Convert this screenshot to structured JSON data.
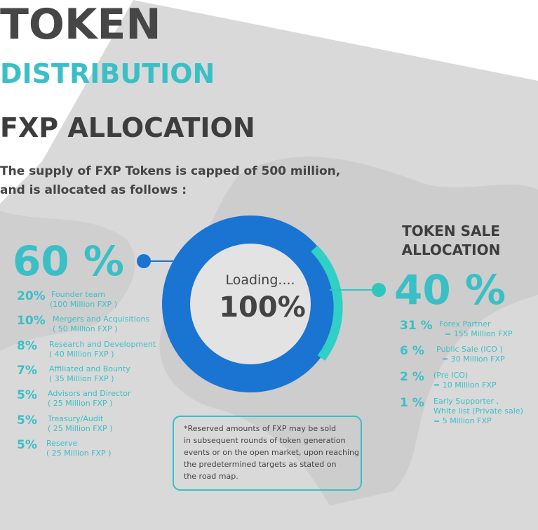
{
  "header": {
    "title": "TOKEN",
    "subtitle": "DISTRIBUTION"
  },
  "section": {
    "heading": "FXP ALLOCATION",
    "intro_lines": [
      "The supply of FXP Tokens is capped of 500 million,",
      "and is allocated as follows :"
    ]
  },
  "center": {
    "status": "Loading....",
    "value": "100%"
  },
  "left": {
    "total": "60 %",
    "items": [
      {
        "percent": "20%",
        "lines": [
          "Founder team",
          "(100 Million FXP )"
        ]
      },
      {
        "percent": "10%",
        "lines": [
          "Mergers  and Acquisitions",
          "( 50 Million FXP )"
        ]
      },
      {
        "percent": "8%",
        "lines": [
          "Research and Development",
          "( 40 Million FXP )"
        ]
      },
      {
        "percent": "7%",
        "lines": [
          "Affiliated and Bounty",
          "( 35 Million FXP )"
        ]
      },
      {
        "percent": "5%",
        "lines": [
          "Advisors and Director",
          "( 25 Million FXP )"
        ]
      },
      {
        "percent": "5%",
        "lines": [
          "Treasury/Audit",
          "( 25 Million FXP )"
        ]
      },
      {
        "percent": "5%",
        "lines": [
          "Reserve",
          "( 25 Million FXP )"
        ]
      }
    ]
  },
  "right": {
    "title_lines": [
      "TOKEN SALE",
      "ALLOCATION"
    ],
    "total": "40 %",
    "items": [
      {
        "percent": "31 %",
        "lines": [
          "Forex Partner",
          "= 155 Million FXP"
        ]
      },
      {
        "percent": "6 %",
        "lines": [
          "Public Sale (ICO )",
          "= 30 Million FXP"
        ]
      },
      {
        "percent": "2 %",
        "lines": [
          "(Pre ICO)",
          "= 10 Million FXP"
        ]
      },
      {
        "percent": "1 %",
        "lines": [
          "Early Supporter ,",
          "White list (Private sale)",
          "= 5 Million FXP"
        ]
      }
    ]
  },
  "note": {
    "lines": [
      "*Reserved amounts of FXP may be sold",
      "in subsequent rounds of token generation",
      "events or on the open market, upon reaching",
      "the predetermined targets as stated on",
      "the road map."
    ]
  }
}
